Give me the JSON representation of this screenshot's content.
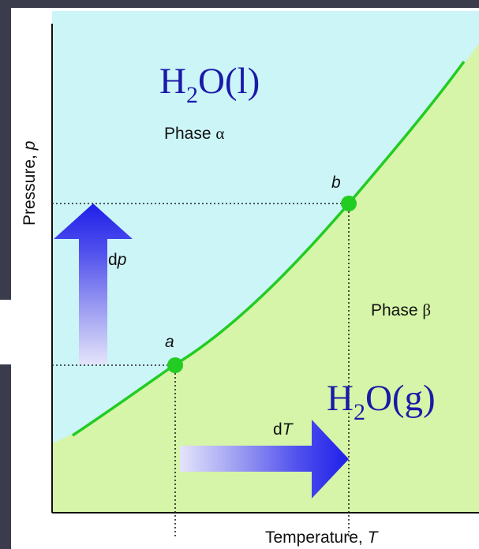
{
  "diagram": {
    "title_liquid": {
      "base": "H",
      "sub": "2",
      "rest": "O(l)"
    },
    "title_gas": {
      "base": "H",
      "sub": "2",
      "rest": "O(g)"
    },
    "phase_alpha": {
      "text": "Phase ",
      "symbol": "α"
    },
    "phase_beta": {
      "text": "Phase ",
      "symbol": "β"
    },
    "point_a": "a",
    "point_b": "b",
    "dp_label": {
      "d": "d",
      "var": "p"
    },
    "dT_label": {
      "d": "d",
      "var": "T"
    },
    "y_axis_label": {
      "text": "Pressure, ",
      "var": "p"
    },
    "x_axis_label": {
      "text": "Temperature, ",
      "var": "T"
    }
  },
  "colors": {
    "liquid_region": "#ccf5f8",
    "gas_region": "#d6f5a8",
    "coexistence_curve": "#22cc22",
    "point": "#22cc22",
    "arrow_dark": "#2222ee",
    "arrow_light": "#d8d8f8",
    "formula_text": "#1a1aa8",
    "frame_dark": "#3a3c4c"
  }
}
